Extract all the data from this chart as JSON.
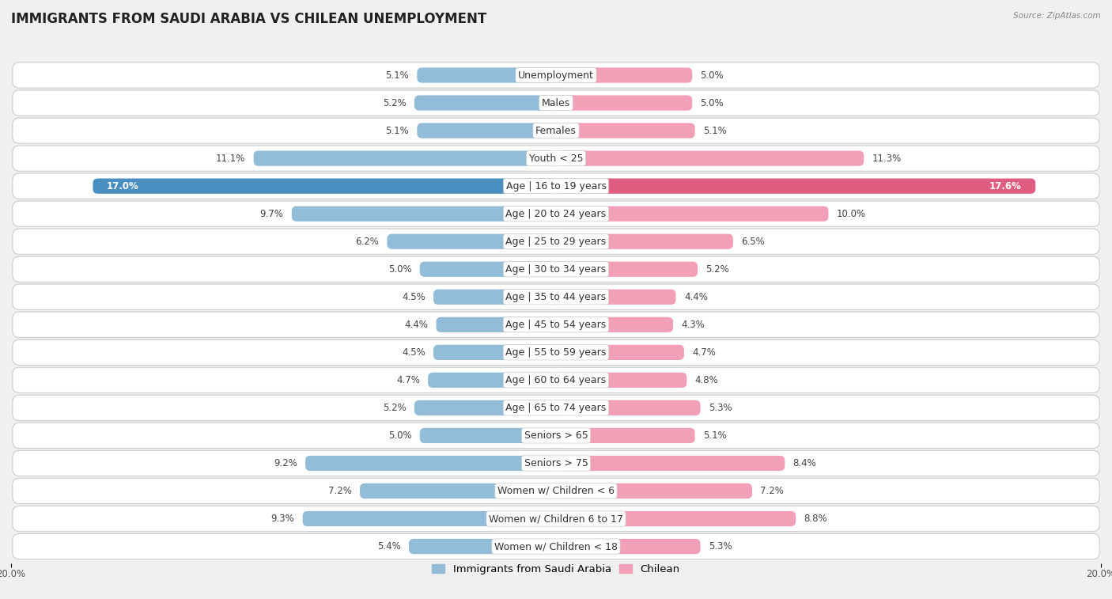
{
  "title": "IMMIGRANTS FROM SAUDI ARABIA VS CHILEAN UNEMPLOYMENT",
  "source": "Source: ZipAtlas.com",
  "categories": [
    "Unemployment",
    "Males",
    "Females",
    "Youth < 25",
    "Age | 16 to 19 years",
    "Age | 20 to 24 years",
    "Age | 25 to 29 years",
    "Age | 30 to 34 years",
    "Age | 35 to 44 years",
    "Age | 45 to 54 years",
    "Age | 55 to 59 years",
    "Age | 60 to 64 years",
    "Age | 65 to 74 years",
    "Seniors > 65",
    "Seniors > 75",
    "Women w/ Children < 6",
    "Women w/ Children 6 to 17",
    "Women w/ Children < 18"
  ],
  "left_values": [
    5.1,
    5.2,
    5.1,
    11.1,
    17.0,
    9.7,
    6.2,
    5.0,
    4.5,
    4.4,
    4.5,
    4.7,
    5.2,
    5.0,
    9.2,
    7.2,
    9.3,
    5.4
  ],
  "right_values": [
    5.0,
    5.0,
    5.1,
    11.3,
    17.6,
    10.0,
    6.5,
    5.2,
    4.4,
    4.3,
    4.7,
    4.8,
    5.3,
    5.1,
    8.4,
    7.2,
    8.8,
    5.3
  ],
  "left_color": "#92bcd8",
  "right_color": "#f2a0b8",
  "left_label": "Immigrants from Saudi Arabia",
  "right_label": "Chilean",
  "xlim": 20.0,
  "bg_color": "#f0f0f0",
  "row_bg": "#ffffff",
  "row_border": "#cccccc",
  "title_fontsize": 12,
  "label_fontsize": 9,
  "value_fontsize": 8.5,
  "highlight_row": 4,
  "highlight_left_color": "#4a8fc2",
  "highlight_right_color": "#e05c80"
}
